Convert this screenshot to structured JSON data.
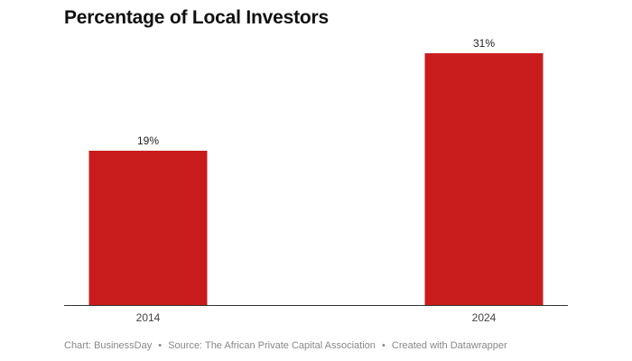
{
  "chart_data": {
    "type": "bar",
    "title": "Percentage of Local Investors",
    "categories": [
      "2014",
      "2024"
    ],
    "values": [
      19,
      31
    ],
    "value_labels": [
      "19%",
      "31%"
    ],
    "unit": "%",
    "xlabel": "",
    "ylabel": "",
    "ylim": [
      0,
      31
    ],
    "grid": false,
    "legend": "none",
    "bar_color": "#c91d1d"
  },
  "footer": {
    "chart_credit": "Chart: BusinessDay",
    "source": "Source: The African Private Capital Association",
    "tool": "Created with Datawrapper",
    "separator": "•"
  }
}
